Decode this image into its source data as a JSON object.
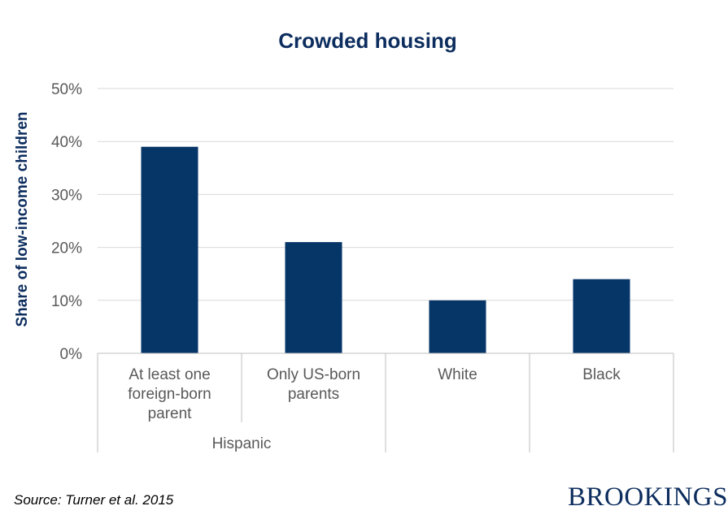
{
  "chart_data": {
    "type": "bar",
    "title": "Crowded housing",
    "ylabel": "Share of low-income children",
    "xlabel": "",
    "ylim": [
      0,
      50
    ],
    "yticks": [
      0,
      10,
      20,
      30,
      40,
      50
    ],
    "ytick_labels": [
      "0%",
      "10%",
      "20%",
      "30%",
      "40%",
      "50%"
    ],
    "categories": [
      {
        "lines": [
          "At least one",
          "foreign-born",
          "parent"
        ],
        "value": 39
      },
      {
        "lines": [
          "Only US-born",
          "parents"
        ],
        "value": 21
      },
      {
        "lines": [
          "White"
        ],
        "value": 10
      },
      {
        "lines": [
          "Black"
        ],
        "value": 14
      }
    ],
    "groups": [
      {
        "label": "Hispanic",
        "span": [
          0,
          1
        ]
      }
    ],
    "bar_color": "#063567",
    "title_color": "#0c2d5e",
    "grid": true,
    "legend": "none"
  },
  "footer": {
    "source": "Source:  Turner et al. 2015",
    "logo": "BROOKINGS"
  }
}
